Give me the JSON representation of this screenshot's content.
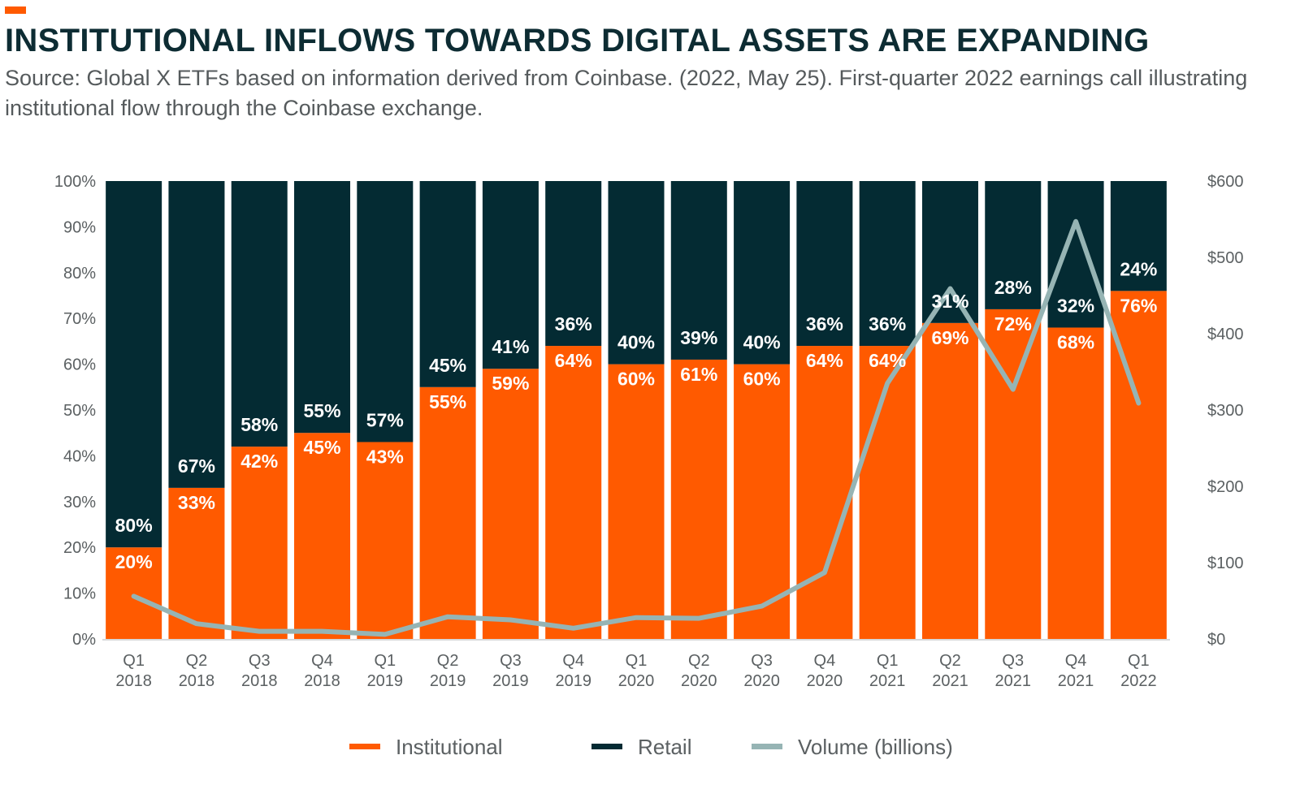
{
  "header": {
    "title": "INSTITUTIONAL INFLOWS TOWARDS DIGITAL ASSETS ARE EXPANDING",
    "subtitle": "Source: Global X ETFs based on information derived from Coinbase. (2022, May 25). First-quarter 2022 earnings call illustrating institutional flow through the Coinbase exchange."
  },
  "colors": {
    "accent": "#ff5a00",
    "institutional": "#ff5a00",
    "retail": "#042b33",
    "volume": "#96b4b4",
    "title": "#0d2c33"
  },
  "chart_data": {
    "type": "bar",
    "stacked": true,
    "categories": [
      [
        "Q1",
        "2018"
      ],
      [
        "Q2",
        "2018"
      ],
      [
        "Q3",
        "2018"
      ],
      [
        "Q4",
        "2018"
      ],
      [
        "Q1",
        "2019"
      ],
      [
        "Q2",
        "2019"
      ],
      [
        "Q3",
        "2019"
      ],
      [
        "Q4",
        "2019"
      ],
      [
        "Q1",
        "2020"
      ],
      [
        "Q2",
        "2020"
      ],
      [
        "Q3",
        "2020"
      ],
      [
        "Q4",
        "2020"
      ],
      [
        "Q1",
        "2021"
      ],
      [
        "Q2",
        "2021"
      ],
      [
        "Q3",
        "2021"
      ],
      [
        "Q4",
        "2021"
      ],
      [
        "Q1",
        "2022"
      ]
    ],
    "series": [
      {
        "name": "Institutional",
        "axis": "left",
        "values": [
          20,
          33,
          42,
          45,
          43,
          55,
          59,
          64,
          60,
          61,
          60,
          64,
          64,
          69,
          72,
          68,
          76
        ]
      },
      {
        "name": "Retail",
        "axis": "left",
        "values": [
          80,
          67,
          58,
          55,
          57,
          45,
          41,
          36,
          40,
          39,
          40,
          36,
          36,
          31,
          28,
          32,
          24
        ]
      },
      {
        "name": "Volume (billions)",
        "type": "line",
        "axis": "right",
        "values": [
          56,
          20,
          10,
          10,
          6,
          29,
          25,
          14,
          28,
          27,
          43,
          87,
          335,
          459,
          327,
          547,
          309
        ]
      }
    ],
    "left_axis": {
      "min": 0,
      "max": 100,
      "step": 10,
      "ticks": [
        "0%",
        "10%",
        "20%",
        "30%",
        "40%",
        "50%",
        "60%",
        "70%",
        "80%",
        "90%",
        "100%"
      ]
    },
    "right_axis": {
      "min": 0,
      "max": 600,
      "step": 100,
      "ticks": [
        "$0",
        "$100",
        "$200",
        "$300",
        "$400",
        "$500",
        "$600"
      ]
    },
    "legend": {
      "position": "bottom",
      "items": [
        "Institutional",
        "Retail",
        "Volume (billions)"
      ]
    },
    "value_suffix": "%"
  }
}
